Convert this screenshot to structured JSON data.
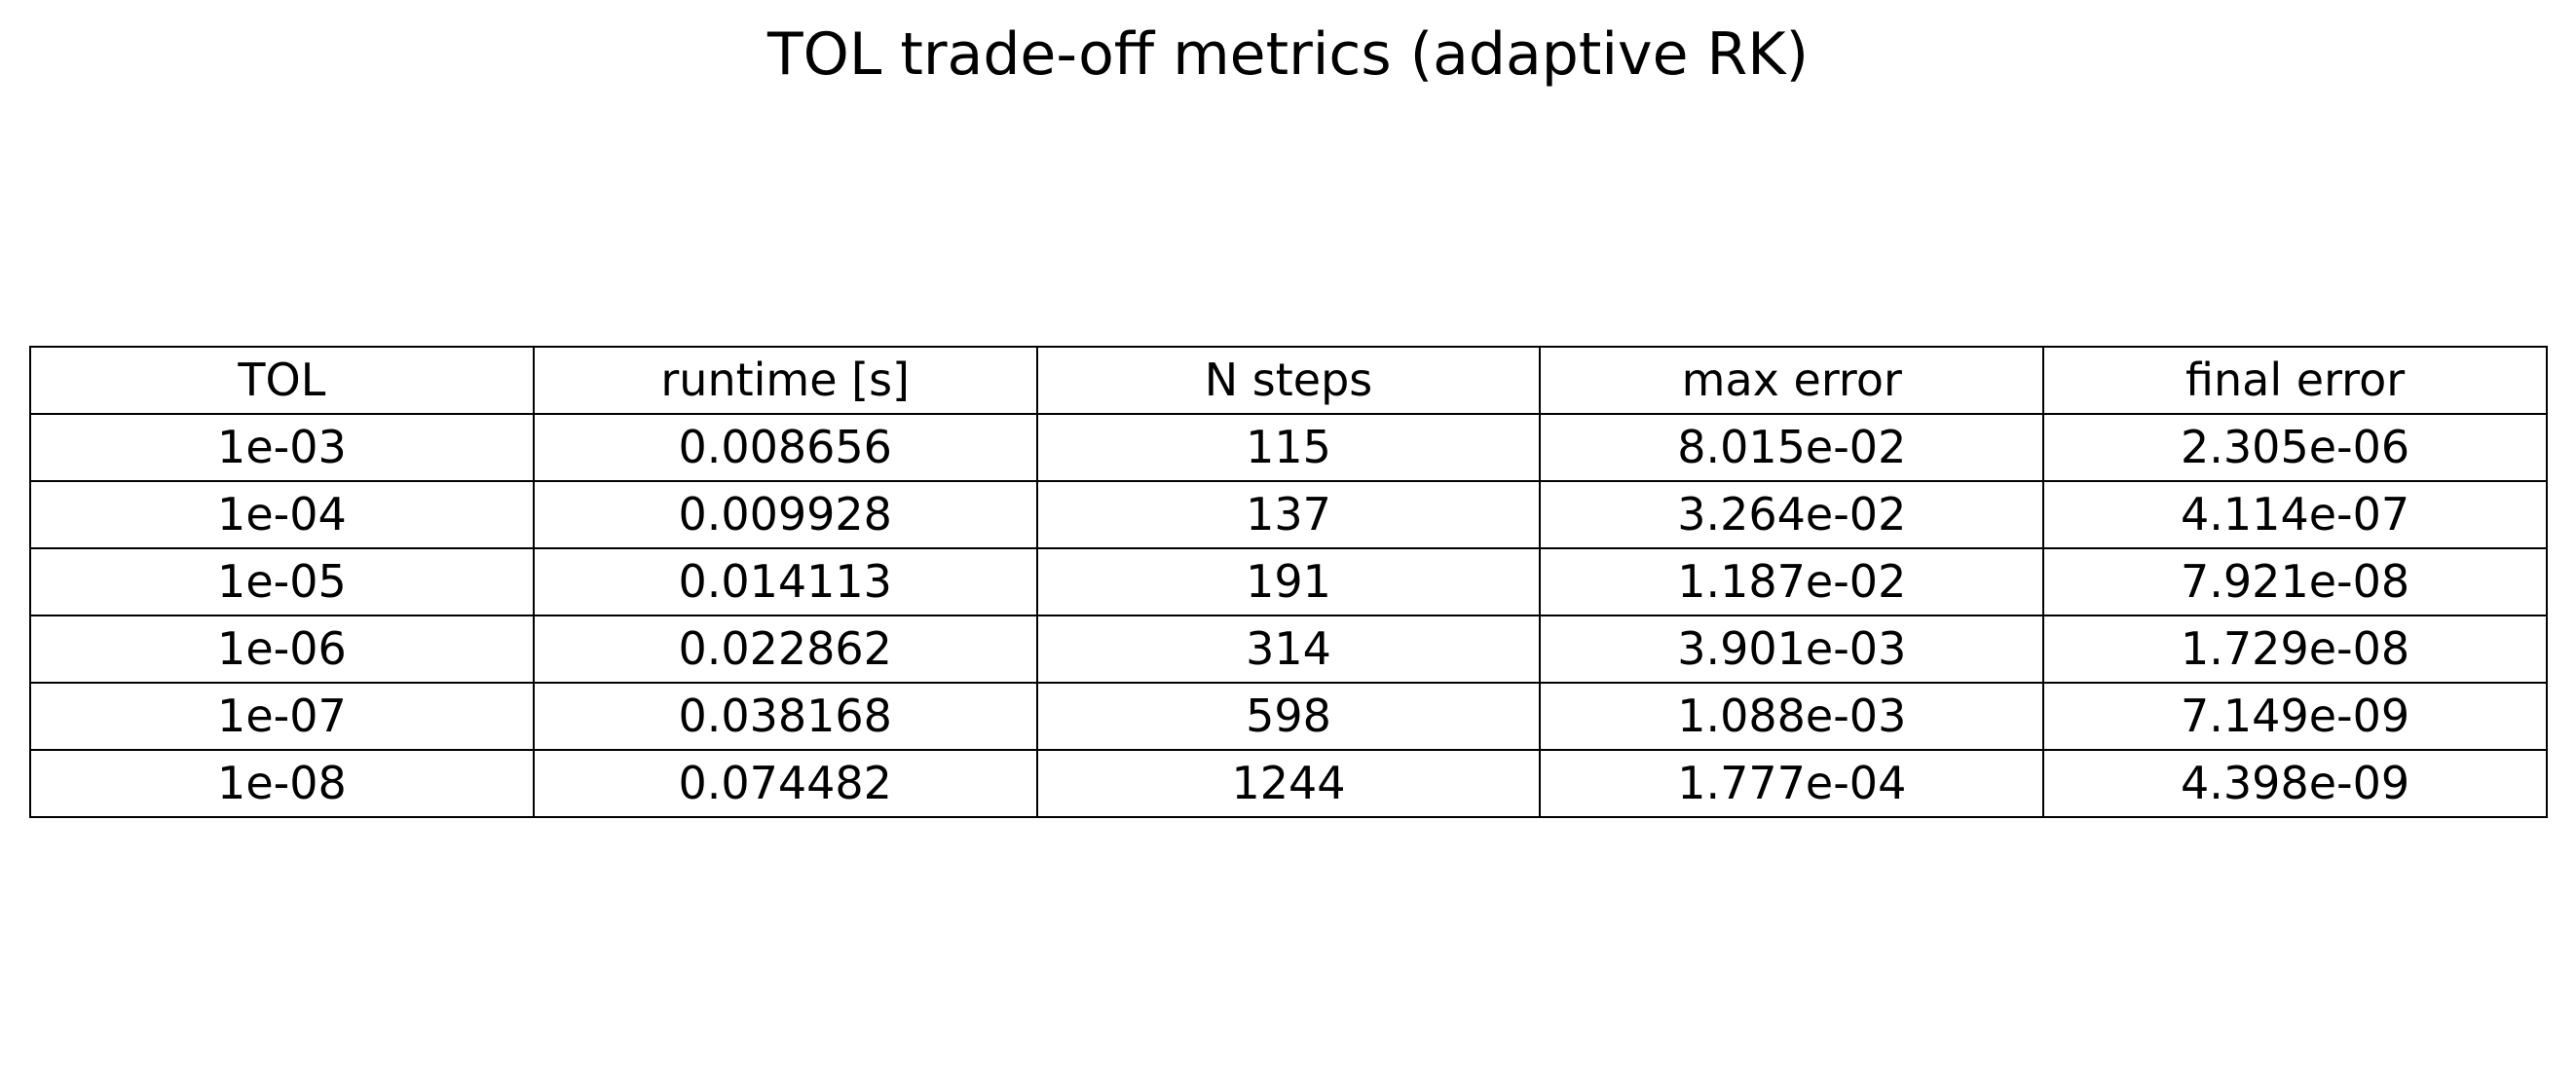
{
  "title": "TOL trade-off metrics (adaptive RK)",
  "chart_data": {
    "type": "table",
    "title": "TOL trade-off metrics (adaptive RK)",
    "columns": [
      "TOL",
      "runtime [s]",
      "N steps",
      "max error",
      "final error"
    ],
    "rows": [
      [
        "1e-03",
        "0.008656",
        "115",
        "8.015e-02",
        "2.305e-06"
      ],
      [
        "1e-04",
        "0.009928",
        "137",
        "3.264e-02",
        "4.114e-07"
      ],
      [
        "1e-05",
        "0.014113",
        "191",
        "1.187e-02",
        "7.921e-08"
      ],
      [
        "1e-06",
        "0.022862",
        "314",
        "3.901e-03",
        "1.729e-08"
      ],
      [
        "1e-07",
        "0.038168",
        "598",
        "1.088e-03",
        "7.149e-09"
      ],
      [
        "1e-08",
        "0.074482",
        "1244",
        "1.777e-04",
        "4.398e-09"
      ]
    ]
  }
}
